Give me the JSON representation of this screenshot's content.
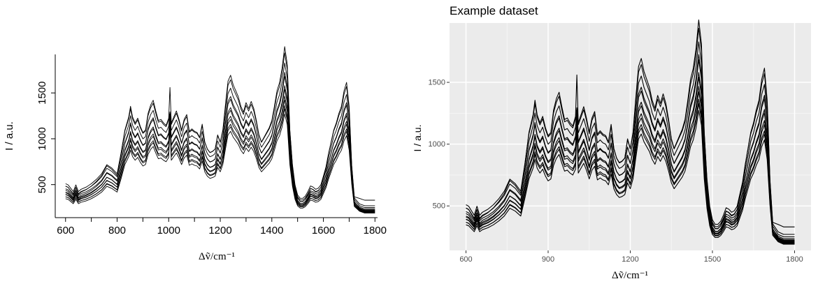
{
  "chart_data": [
    {
      "type": "line",
      "title": "",
      "xlabel": "Δṽ/cm⁻¹",
      "ylabel": "I / a.u.",
      "xlim": [
        560,
        1810
      ],
      "ylim": [
        140,
        1920
      ],
      "xticks": [
        600,
        800,
        1000,
        1200,
        1400,
        1600,
        1800
      ],
      "yticks": [
        500,
        1000,
        1500
      ],
      "grid": false,
      "theme": "base",
      "x": [
        600,
        610,
        620,
        630,
        640,
        650,
        660,
        680,
        700,
        720,
        740,
        760,
        780,
        800,
        815,
        830,
        845,
        852,
        860,
        870,
        880,
        890,
        900,
        910,
        920,
        930,
        940,
        950,
        960,
        970,
        980,
        990,
        1000,
        1005,
        1010,
        1020,
        1030,
        1040,
        1050,
        1060,
        1070,
        1080,
        1090,
        1100,
        1110,
        1120,
        1130,
        1140,
        1150,
        1160,
        1170,
        1180,
        1190,
        1200,
        1210,
        1220,
        1230,
        1240,
        1250,
        1260,
        1270,
        1280,
        1290,
        1300,
        1310,
        1320,
        1330,
        1340,
        1350,
        1360,
        1370,
        1380,
        1390,
        1400,
        1410,
        1420,
        1430,
        1440,
        1450,
        1460,
        1470,
        1480,
        1490,
        1500,
        1510,
        1520,
        1530,
        1540,
        1550,
        1560,
        1570,
        1580,
        1590,
        1600,
        1610,
        1620,
        1630,
        1640,
        1650,
        1660,
        1670,
        1680,
        1690,
        1700,
        1710,
        1720,
        1740,
        1760,
        1780,
        1800
      ],
      "series_count": 12,
      "series": [
        {
          "values": [
            430,
            420,
            390,
            360,
            420,
            360,
            380,
            400,
            430,
            470,
            520,
            600,
            570,
            520,
            700,
            900,
            1010,
            1100,
            1010,
            960,
            1000,
            930,
            880,
            900,
            1040,
            1110,
            1150,
            1060,
            980,
            990,
            960,
            940,
            1000,
            1310,
            960,
            1010,
            1060,
            990,
            900,
            990,
            1030,
            890,
            910,
            890,
            880,
            840,
            950,
            800,
            740,
            710,
            720,
            740,
            860,
            800,
            900,
            1110,
            1310,
            1360,
            1280,
            1230,
            1180,
            1100,
            1050,
            1130,
            1080,
            1140,
            1080,
            980,
            860,
            800,
            840,
            880,
            920,
            980,
            1100,
            1230,
            1300,
            1420,
            1600,
            1450,
            900,
            600,
            420,
            330,
            300,
            300,
            320,
            360,
            410,
            400,
            380,
            390,
            420,
            500,
            580,
            700,
            800,
            900,
            960,
            1040,
            1100,
            1230,
            1300,
            1100,
            600,
            300,
            230,
            210,
            210,
            210
          ]
        }
      ],
      "amplitudes": [
        1.3,
        1.22,
        1.15,
        1.1,
        1.05,
        1.0,
        0.96,
        0.92,
        0.88,
        0.85,
        0.82,
        0.79
      ],
      "offsets": [
        0,
        40,
        25,
        -10,
        15,
        -20,
        -5,
        -25,
        -15,
        -35,
        -30,
        -45
      ],
      "tail_offsets": [
        120,
        60,
        40,
        25,
        15,
        10,
        5,
        0,
        -5,
        -10,
        -15,
        -20
      ]
    },
    {
      "type": "line",
      "title": "Example dataset",
      "xlabel": "Δṽ/cm⁻¹",
      "ylabel": "I / a.u.",
      "xlim": [
        540,
        1860
      ],
      "ylim": [
        140,
        1980
      ],
      "xticks": [
        600,
        900,
        1200,
        1500,
        1800
      ],
      "yticks": [
        500,
        1000,
        1500
      ],
      "grid": true,
      "theme": "grey",
      "series_count": 12
    }
  ]
}
